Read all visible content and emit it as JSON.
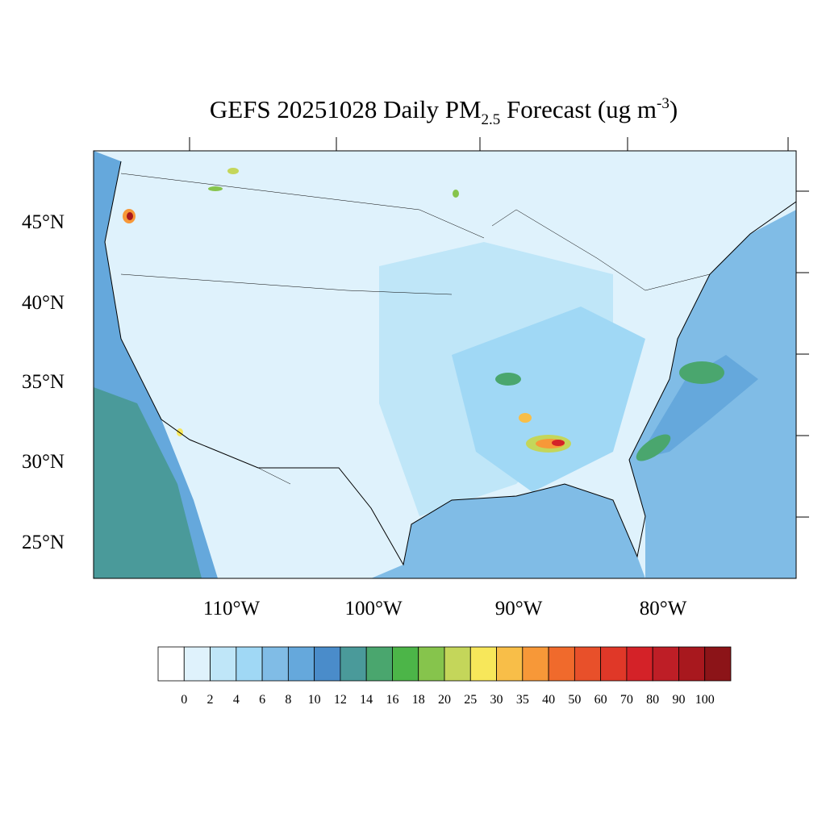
{
  "title": {
    "main": "GEFS 20251028 Daily PM",
    "sub": "2.5",
    "rest": " Forecast (ug m",
    "sup": "-3",
    "end": ")"
  },
  "map": {
    "lat_labels": [
      "45°N",
      "40°N",
      "35°N",
      "30°N",
      "25°N"
    ],
    "lon_labels": [
      "110°W",
      "100°W",
      "90°W",
      "80°W"
    ]
  },
  "colorbar": {
    "colors": [
      "#ffffff",
      "#dff2fc",
      "#bfe6f8",
      "#a0d8f5",
      "#80bce6",
      "#65a8dc",
      "#4a8cca",
      "#4a9a9a",
      "#4aa66e",
      "#4cb548",
      "#86c44c",
      "#c4d65a",
      "#f7e75a",
      "#f8be48",
      "#f79838",
      "#f06a2c",
      "#e8502a",
      "#e03828",
      "#d42228",
      "#be1e26",
      "#a8181e",
      "#8c1418"
    ],
    "labels": [
      0,
      2,
      4,
      6,
      8,
      10,
      12,
      14,
      16,
      18,
      20,
      25,
      30,
      35,
      40,
      50,
      60,
      70,
      80,
      90,
      100
    ]
  }
}
